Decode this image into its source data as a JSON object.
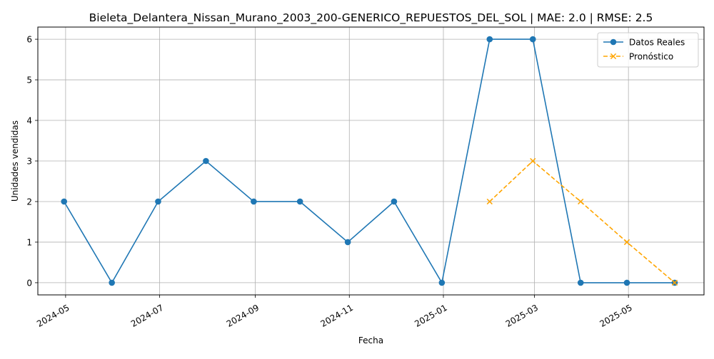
{
  "chart_data": {
    "type": "line",
    "title": "Bieleta_Delantera_Nissan_Murano_2003_200-GENERICO_REPUESTOS_DEL_SOL | MAE: 2.0 | RMSE: 2.5",
    "xlabel": "Fecha",
    "ylabel": "Unidades vendidas",
    "x_ticks": [
      "2024-05",
      "2024-07",
      "2024-09",
      "2024-11",
      "2025-01",
      "2025-03",
      "2025-05"
    ],
    "y_ticks": [
      0,
      1,
      2,
      3,
      4,
      5,
      6
    ],
    "ylim": [
      -0.3,
      6.3
    ],
    "xlim": [
      "2024-04-13",
      "2025-06-19"
    ],
    "grid": true,
    "legend_position": "top-right",
    "series": [
      {
        "name": "Datos Reales",
        "color": "#1f77b4",
        "style": "solid",
        "marker": "circle",
        "x": [
          "2024-04-30",
          "2024-05-31",
          "2024-06-30",
          "2024-07-31",
          "2024-08-31",
          "2024-09-30",
          "2024-10-31",
          "2024-11-30",
          "2024-12-31",
          "2025-01-31",
          "2025-02-28",
          "2025-03-31",
          "2025-04-30",
          "2025-05-31"
        ],
        "values": [
          2,
          0,
          2,
          3,
          2,
          2,
          1,
          2,
          0,
          6,
          6,
          0,
          0,
          0
        ]
      },
      {
        "name": "Pronóstico",
        "color": "#ffa500",
        "style": "dashed",
        "marker": "x",
        "x": [
          "2025-01-31",
          "2025-02-28",
          "2025-03-31",
          "2025-04-30",
          "2025-05-31"
        ],
        "values": [
          2,
          3,
          2,
          1,
          0
        ]
      }
    ]
  }
}
